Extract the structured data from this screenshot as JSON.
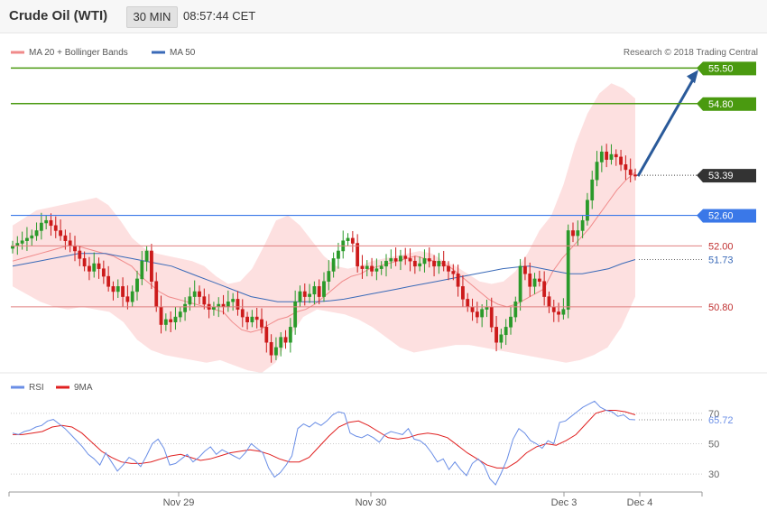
{
  "header": {
    "title": "Crude Oil (WTI)",
    "timeframe": "30 MIN",
    "time": "08:57:44 CET"
  },
  "legend": {
    "ma20_label": "MA 20 + Bollinger Bands",
    "ma50_label": "MA 50",
    "ma20_color": "#f08a8a",
    "ma50_color": "#3a6ab8",
    "rsi_label": "RSI",
    "ma9_label": "9MA",
    "rsi_color": "#6a8ee6",
    "ma9_color": "#e02020"
  },
  "copyright": "Research © 2018 Trading Central",
  "colors": {
    "resistance": "#4a9a10",
    "support": "#e08080",
    "pivot": "#3a78e8",
    "current": "#333333",
    "bullish": "#2a9a2a",
    "bearish": "#cc1a1a",
    "bands": "#fde0e0",
    "arrow": "#2a5a9a"
  },
  "chart_data": [
    {
      "type": "candlestick",
      "x_ticks": [
        "Nov 29",
        "Nov 30",
        "Dec 3",
        "Dec 4"
      ],
      "price_range": [
        49.5,
        56.2
      ],
      "levels": [
        {
          "label": "55.50",
          "value": 55.5,
          "kind": "resistance"
        },
        {
          "label": "54.80",
          "value": 54.8,
          "kind": "resistance"
        },
        {
          "label": "53.39",
          "value": 53.39,
          "kind": "current"
        },
        {
          "label": "52.60",
          "value": 52.6,
          "kind": "pivot"
        },
        {
          "label": "52.00",
          "value": 52.0,
          "kind": "support"
        },
        {
          "label": "51.73",
          "value": 51.73,
          "kind": "ma50"
        },
        {
          "label": "50.80",
          "value": 50.8,
          "kind": "support"
        }
      ],
      "closes": [
        52.0,
        52.05,
        52.1,
        52.15,
        52.2,
        52.3,
        52.45,
        52.5,
        52.4,
        52.3,
        52.2,
        52.1,
        52.0,
        51.9,
        51.75,
        51.6,
        51.5,
        51.65,
        51.55,
        51.4,
        51.2,
        51.1,
        51.2,
        51.0,
        50.9,
        51.1,
        51.35,
        51.7,
        51.9,
        51.3,
        50.8,
        50.45,
        50.55,
        50.5,
        50.6,
        50.7,
        50.85,
        51.0,
        51.1,
        51.0,
        50.85,
        50.75,
        50.8,
        50.85,
        50.8,
        50.9,
        50.95,
        50.75,
        50.6,
        50.5,
        50.6,
        50.55,
        50.4,
        50.1,
        49.85,
        50.0,
        50.2,
        50.1,
        50.4,
        50.9,
        51.1,
        51.0,
        51.05,
        51.2,
        51.0,
        51.3,
        51.5,
        51.75,
        51.9,
        52.1,
        52.15,
        52.05,
        51.6,
        51.55,
        51.6,
        51.5,
        51.55,
        51.6,
        51.7,
        51.75,
        51.7,
        51.8,
        51.75,
        51.7,
        51.6,
        51.65,
        51.75,
        51.7,
        51.6,
        51.7,
        51.6,
        51.5,
        51.45,
        51.2,
        50.95,
        50.8,
        50.7,
        50.6,
        50.75,
        50.8,
        50.4,
        50.1,
        50.25,
        50.4,
        50.6,
        50.9,
        51.6,
        51.45,
        51.2,
        51.35,
        51.3,
        51.0,
        50.8,
        50.7,
        50.65,
        50.75,
        52.3,
        52.2,
        52.3,
        52.5,
        52.9,
        53.3,
        53.65,
        53.85,
        53.7,
        53.8,
        53.75,
        53.6,
        53.5,
        53.4,
        53.39
      ],
      "ma20": [
        51.7,
        51.75,
        51.8,
        51.85,
        51.9,
        51.95,
        52.0,
        52.0,
        51.95,
        51.9,
        51.85,
        51.8,
        51.7,
        51.6,
        51.4,
        51.25,
        51.1,
        51.0,
        50.95,
        50.9,
        50.85,
        50.8,
        50.75,
        50.7,
        50.5,
        50.35,
        50.3,
        50.35,
        50.45,
        50.55,
        50.6,
        50.7,
        50.75,
        50.85,
        51.0,
        51.15,
        51.3,
        51.4,
        51.45,
        51.55,
        51.6,
        51.65,
        51.7,
        51.75,
        51.8,
        51.75,
        51.7,
        51.65,
        51.55,
        51.4,
        51.25,
        51.1,
        50.95,
        50.85,
        50.8,
        50.85,
        50.95,
        51.05,
        51.15,
        51.5,
        51.75,
        51.95,
        52.15,
        52.35,
        52.6,
        52.85,
        53.1,
        53.3,
        53.45
      ],
      "ma50": [
        51.6,
        51.65,
        51.7,
        51.75,
        51.8,
        51.85,
        51.85,
        51.85,
        51.8,
        51.75,
        51.7,
        51.65,
        51.6,
        51.5,
        51.4,
        51.3,
        51.2,
        51.1,
        51.0,
        50.95,
        50.9,
        50.9,
        50.9,
        50.9,
        50.92,
        50.95,
        51.0,
        51.05,
        51.1,
        51.15,
        51.2,
        51.25,
        51.3,
        51.35,
        51.4,
        51.45,
        51.5,
        51.55,
        51.58,
        51.6,
        51.55,
        51.5,
        51.45,
        51.45,
        51.5,
        51.55,
        51.65,
        51.73
      ],
      "bb_upper": [
        52.4,
        52.55,
        52.7,
        52.75,
        52.8,
        52.85,
        52.9,
        52.95,
        52.8,
        52.5,
        52.15,
        51.95,
        51.85,
        51.8,
        51.75,
        51.7,
        51.6,
        51.4,
        51.25,
        51.3,
        51.55,
        52.0,
        52.5,
        52.6,
        52.4,
        52.1,
        51.8,
        51.6,
        51.55,
        51.6,
        51.7,
        51.75,
        51.8,
        51.85,
        51.9,
        51.85,
        51.7,
        51.6,
        51.45,
        51.3,
        51.25,
        51.3,
        51.5,
        51.85,
        52.3,
        52.6,
        53.2,
        54.0,
        54.6,
        55.0,
        55.2,
        55.1,
        54.9
      ],
      "bb_lower": [
        51.2,
        51.05,
        50.9,
        50.8,
        50.75,
        50.8,
        50.75,
        50.7,
        50.5,
        50.15,
        49.95,
        49.85,
        49.8,
        49.75,
        49.7,
        49.75,
        49.65,
        49.55,
        49.5,
        49.7,
        50.2,
        50.6,
        50.75,
        50.7,
        50.65,
        50.55,
        50.4,
        50.2,
        50.0,
        49.9,
        49.95,
        50.0,
        50.05,
        50.05,
        50.0,
        49.95,
        49.9,
        49.85,
        49.8,
        49.75,
        49.7,
        49.75,
        49.85,
        50.0,
        50.4,
        51.0
      ]
    },
    {
      "type": "line",
      "x_ticks": [
        "Nov 29",
        "Nov 30",
        "Dec 3",
        "Dec 4"
      ],
      "y_ticks": [
        "70",
        "50",
        "30"
      ],
      "ylim": [
        20,
        80
      ],
      "current_label": "65.72",
      "series": [
        {
          "name": "RSI",
          "values": [
            57,
            56,
            58,
            59,
            61,
            62,
            65,
            66,
            63,
            60,
            56,
            52,
            48,
            43,
            40,
            36,
            44,
            38,
            32,
            36,
            41,
            39,
            35,
            42,
            50,
            53,
            47,
            36,
            37,
            40,
            43,
            38,
            41,
            45,
            48,
            43,
            46,
            44,
            42,
            40,
            44,
            50,
            47,
            44,
            34,
            28,
            31,
            36,
            42,
            60,
            63,
            61,
            64,
            62,
            65,
            69,
            71,
            70,
            57,
            55,
            54,
            56,
            54,
            51,
            56,
            58,
            57,
            56,
            60,
            53,
            52,
            49,
            44,
            38,
            40,
            33,
            38,
            33,
            29,
            37,
            40,
            36,
            27,
            23,
            31,
            40,
            53,
            60,
            57,
            52,
            50,
            47,
            52,
            50,
            64,
            65,
            68,
            71,
            74,
            76,
            78,
            74,
            72,
            71,
            68,
            69,
            66,
            65.72
          ]
        },
        {
          "name": "9MA",
          "values": [
            56,
            56,
            57,
            58,
            61,
            62,
            61,
            57,
            51,
            45,
            41,
            38,
            37,
            37,
            38,
            40,
            42,
            43,
            41,
            39,
            40,
            42,
            44,
            45,
            46,
            45,
            43,
            40,
            38,
            38,
            41,
            48,
            55,
            61,
            64,
            65,
            62,
            58,
            54,
            53,
            54,
            56,
            57,
            56,
            54,
            49,
            44,
            40,
            36,
            34,
            34,
            38,
            44,
            48,
            50,
            49,
            52,
            56,
            63,
            70,
            72,
            72,
            71,
            69
          ]
        }
      ]
    }
  ]
}
